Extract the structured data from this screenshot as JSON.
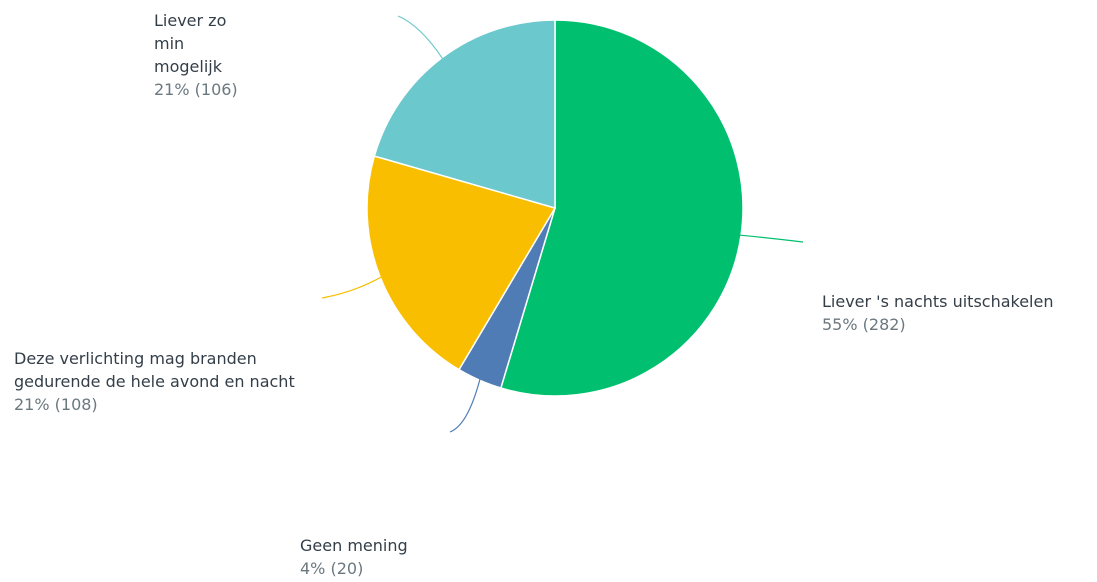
{
  "chart_data": {
    "type": "pie",
    "categories": [
      "Liever 's nachts uitschakelen",
      "Geen mening",
      "Deze verlichting mag branden gedurende de hele avond en nacht",
      "Liever zo min mogelijk"
    ],
    "values": [
      282,
      20,
      108,
      106
    ],
    "value_labels": [
      "55% (282)",
      "4% (20)",
      "21% (108)",
      "21% (106)"
    ],
    "colors": [
      "#00bf6f",
      "#507cb6",
      "#f9be00",
      "#6bc8cd"
    ]
  }
}
